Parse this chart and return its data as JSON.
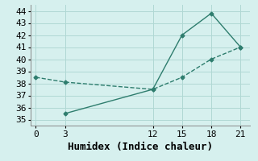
{
  "line1_x": [
    0,
    3,
    12,
    15,
    18,
    21
  ],
  "line1_y": [
    38.5,
    38.1,
    37.5,
    38.5,
    40.0,
    41.0
  ],
  "line2_x": [
    3,
    12,
    15,
    18,
    21
  ],
  "line2_y": [
    35.5,
    37.5,
    42.0,
    43.8,
    41.0
  ],
  "line1_style": "--",
  "line2_style": "-",
  "line_color": "#2e7d6e",
  "marker": "D",
  "marker_size": 2.5,
  "xlabel": "Humidex (Indice chaleur)",
  "xlim": [
    -0.5,
    22
  ],
  "ylim": [
    34.5,
    44.5
  ],
  "xticks": [
    0,
    3,
    12,
    15,
    18,
    21
  ],
  "yticks": [
    35,
    36,
    37,
    38,
    39,
    40,
    41,
    42,
    43,
    44
  ],
  "bg_color": "#d6f0ee",
  "grid_color": "#b0d8d4",
  "font_family": "monospace",
  "xlabel_fontsize": 9,
  "tick_fontsize": 8,
  "linewidth": 1.0
}
